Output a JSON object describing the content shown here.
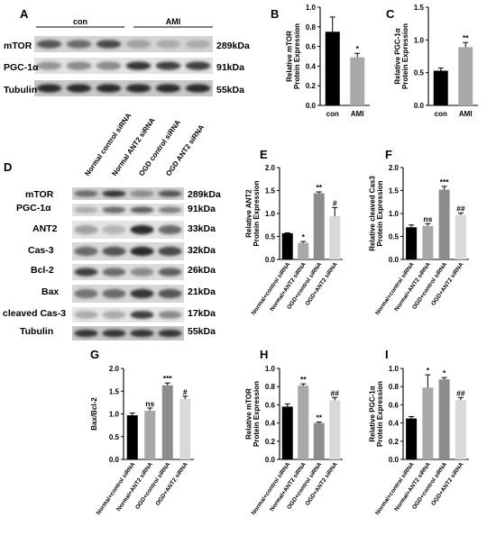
{
  "panelA": {
    "label": "A",
    "groups": [
      "con",
      "AMI"
    ],
    "rows": [
      {
        "protein": "mTOR",
        "size": "289kDa"
      },
      {
        "protein": "PGC-1α",
        "size": "91kDa"
      },
      {
        "protein": "Tubulin",
        "size": "55kDa"
      }
    ]
  },
  "panelD": {
    "label": "D",
    "lanes": [
      "Normal control siRNA",
      "Normal ANT2 siRNA",
      "OGD control siRNA",
      "OGD ANT2 siRNA"
    ],
    "rows": [
      {
        "protein": "mTOR",
        "size": "289kDa"
      },
      {
        "protein": "PGC-1α",
        "size": "91kDa"
      },
      {
        "protein": "ANT2",
        "size": "33kDa"
      },
      {
        "protein": "Cas-3",
        "size": "32kDa"
      },
      {
        "protein": "Bcl-2",
        "size": "26kDa"
      },
      {
        "protein": "Bax",
        "size": "21kDa"
      },
      {
        "protein": "cleaved Cas-3",
        "size": "17kDa"
      },
      {
        "protein": "Tubulin",
        "size": "55kDa"
      }
    ]
  },
  "chart_data": [
    {
      "panel": "B",
      "type": "bar",
      "categories": [
        "con",
        "AMI"
      ],
      "values": [
        0.75,
        0.49
      ],
      "errors": [
        0.15,
        0.04
      ],
      "annotations": [
        "",
        "*"
      ],
      "colors": [
        "#000000",
        "#a9a9a9"
      ],
      "ylabel": "Relative mTOR Protein Expression",
      "ylim": [
        0,
        1.0
      ],
      "yticks": [
        "0.0",
        "0.2",
        "0.4",
        "0.6",
        "0.8",
        "1.0"
      ]
    },
    {
      "panel": "C",
      "type": "bar",
      "categories": [
        "con",
        "AMI"
      ],
      "values": [
        0.53,
        0.89
      ],
      "errors": [
        0.04,
        0.07
      ],
      "annotations": [
        "",
        "**"
      ],
      "colors": [
        "#000000",
        "#a9a9a9"
      ],
      "ylabel": "Relative PGC-1α Protein Expression",
      "ylim": [
        0,
        1.5
      ],
      "yticks": [
        "0.0",
        "0.5",
        "1.0",
        "1.5"
      ]
    },
    {
      "panel": "E",
      "type": "bar",
      "categories": [
        "Normal+control siRNA",
        "Normal+ANT2 siRNA",
        "OGD+control siRNA",
        "OGD+ANT2 siRNA"
      ],
      "values": [
        0.57,
        0.36,
        1.44,
        0.94
      ],
      "errors": [
        0.01,
        0.03,
        0.03,
        0.19
      ],
      "annotations": [
        "",
        "*",
        "**",
        "#"
      ],
      "colors": [
        "#000000",
        "#a8a8a8",
        "#8c8c8c",
        "#d9d9d9"
      ],
      "ylabel": "Relative ANT2 Protein Expression",
      "ylim": [
        0,
        2.0
      ],
      "yticks": [
        "0.0",
        "0.5",
        "1.0",
        "1.5",
        "2.0"
      ]
    },
    {
      "panel": "F",
      "type": "bar",
      "categories": [
        "Normal+control siRNA",
        "Normal+ANT2 siRNA",
        "OGD+control siRNA",
        "OGD+ANT2 siRNA"
      ],
      "values": [
        0.7,
        0.73,
        1.52,
        0.97
      ],
      "errors": [
        0.05,
        0.05,
        0.07,
        0.04
      ],
      "annotations": [
        "",
        "ns",
        "***",
        "##"
      ],
      "colors": [
        "#000000",
        "#a8a8a8",
        "#8c8c8c",
        "#d9d9d9"
      ],
      "ylabel": "Relative cleaved Cas3 Protein Expression",
      "ylim": [
        0,
        2.0
      ],
      "yticks": [
        "0.0",
        "0.5",
        "1.0",
        "1.5",
        "2.0"
      ]
    },
    {
      "panel": "G",
      "type": "bar",
      "categories": [
        "Normal+control siRNA",
        "Normal+ANT2 siRNA",
        "OGD+control siRNA",
        "OGD+ANT2 siRNA"
      ],
      "values": [
        0.97,
        1.07,
        1.63,
        1.33
      ],
      "errors": [
        0.05,
        0.06,
        0.05,
        0.06
      ],
      "annotations": [
        "",
        "ns",
        "***",
        "#"
      ],
      "colors": [
        "#000000",
        "#a8a8a8",
        "#8c8c8c",
        "#d9d9d9"
      ],
      "ylabel": "Bax/Bcl-2",
      "ylim": [
        0,
        2.0
      ],
      "yticks": [
        "0.0",
        "0.5",
        "1.0",
        "1.5",
        "2.0"
      ]
    },
    {
      "panel": "H",
      "type": "bar",
      "categories": [
        "Normal+control siRNA",
        "Normal+ANT2 siRNA",
        "OGD+control siRNA",
        "OGD+ANT2 siRNA"
      ],
      "values": [
        0.58,
        0.81,
        0.4,
        0.65
      ],
      "errors": [
        0.03,
        0.02,
        0.01,
        0.03
      ],
      "annotations": [
        "",
        "**",
        "**",
        "##"
      ],
      "colors": [
        "#000000",
        "#a8a8a8",
        "#8c8c8c",
        "#d9d9d9"
      ],
      "ylabel": "Relative mTOR Protein Expression",
      "ylim": [
        0,
        1.0
      ],
      "yticks": [
        "0.0",
        "0.2",
        "0.4",
        "0.6",
        "0.8",
        "1.0"
      ]
    },
    {
      "panel": "I",
      "type": "bar",
      "categories": [
        "Normal+control siRNA",
        "Normal+ANT2 siRNA",
        "OGD+control siRNA",
        "OGD+ANT2 siRNA"
      ],
      "values": [
        0.45,
        0.79,
        0.88,
        0.65
      ],
      "errors": [
        0.02,
        0.14,
        0.02,
        0.03
      ],
      "annotations": [
        "",
        "*",
        "*",
        "##"
      ],
      "colors": [
        "#000000",
        "#a8a8a8",
        "#8c8c8c",
        "#d9d9d9"
      ],
      "ylabel": "Relative PGC-1α Protein Expression",
      "ylim": [
        0,
        1.0
      ],
      "yticks": [
        "0.0",
        "0.2",
        "0.4",
        "0.6",
        "0.8",
        "1.0"
      ]
    }
  ]
}
